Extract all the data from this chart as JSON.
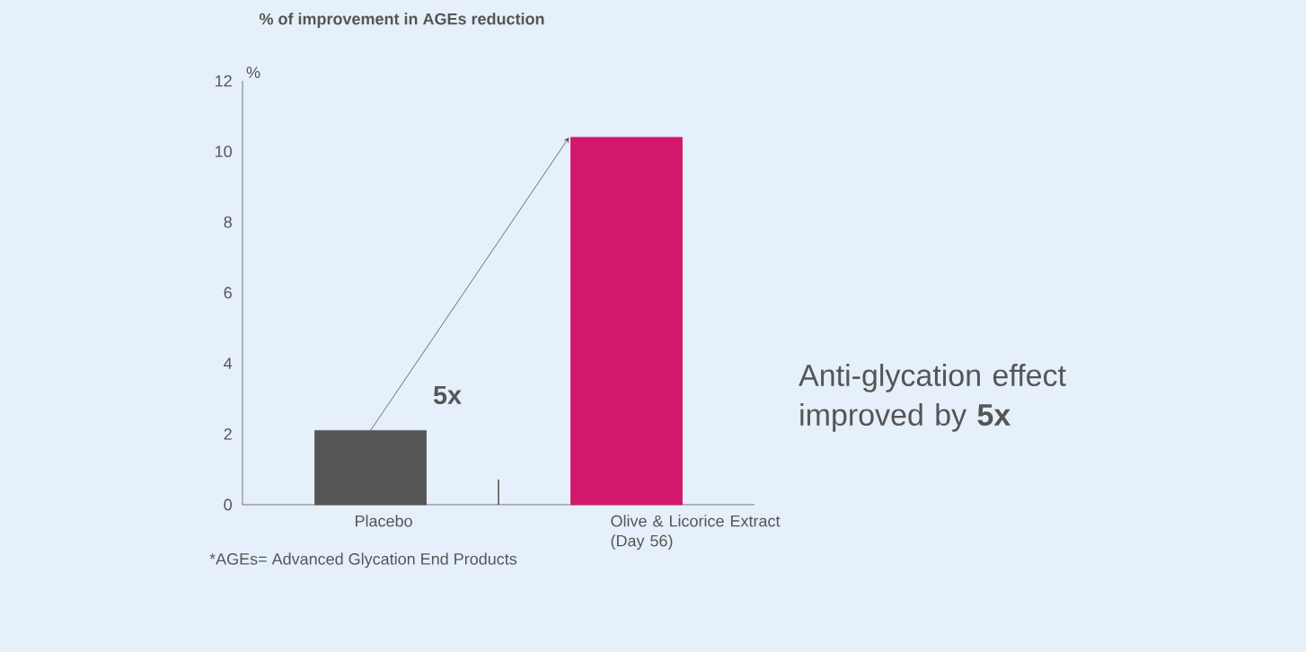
{
  "chart_data": {
    "type": "bar",
    "ylabel": "% of improvement in AGEs reduction",
    "categories": [
      "Placebo",
      "Olive & Licorice Extract (Day 56)"
    ],
    "values": [
      2.1,
      10.4
    ],
    "colors": [
      "#555555",
      "#d1186c"
    ],
    "ylim": [
      0,
      12
    ],
    "yticks": [
      0,
      2,
      4,
      6,
      8,
      10,
      12
    ],
    "annotations": [
      "%",
      "5x",
      "Anti-glycation effect improved by **5x**",
      "*AGEs= Advanced Glycation End Products"
    ]
  }
}
